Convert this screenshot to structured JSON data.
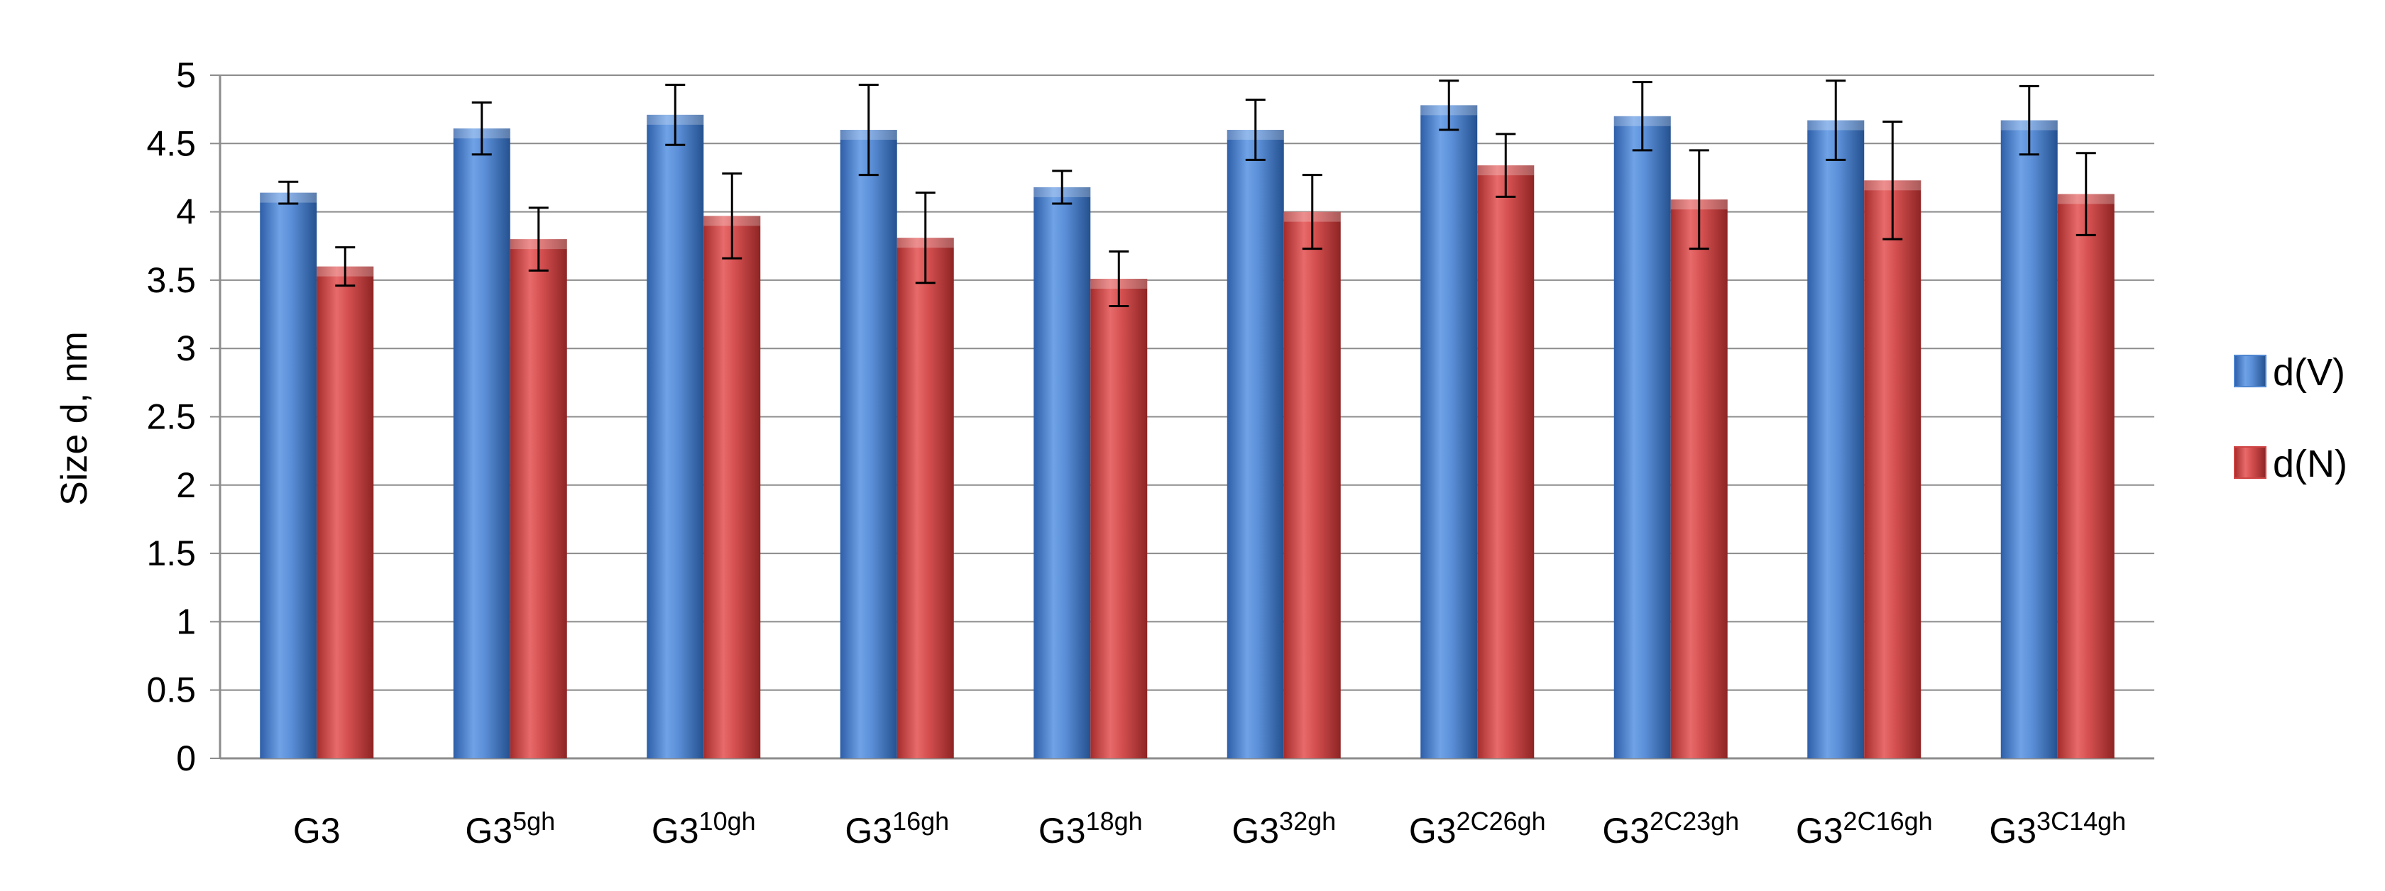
{
  "chart_data": {
    "type": "bar",
    "title": "",
    "xlabel": "",
    "ylabel": "Size d, nm",
    "ylim": [
      0,
      5
    ],
    "yticks": [
      0,
      0.5,
      1,
      1.5,
      2,
      2.5,
      3,
      3.5,
      4,
      4.5,
      5
    ],
    "ytick_labels": [
      "0",
      "0.5",
      "1",
      "1.5",
      "2",
      "2.5",
      "3",
      "3.5",
      "4",
      "4.5",
      "5"
    ],
    "grid": true,
    "legend_position": "right",
    "categories": [
      {
        "base": "G3",
        "sup": ""
      },
      {
        "base": "G3",
        "sup": "5gh"
      },
      {
        "base": "G3",
        "sup": "10gh"
      },
      {
        "base": "G3",
        "sup": "16gh"
      },
      {
        "base": "G3",
        "sup": "18gh"
      },
      {
        "base": "G3",
        "sup": "32gh"
      },
      {
        "base": "G3",
        "sup": "2C26gh"
      },
      {
        "base": "G3",
        "sup": "2C23gh"
      },
      {
        "base": "G3",
        "sup": "2C16gh"
      },
      {
        "base": "G3",
        "sup": "3C14gh"
      }
    ],
    "series": [
      {
        "name": "d(V)",
        "color": "#4f86d0",
        "values": [
          4.14,
          4.61,
          4.71,
          4.6,
          4.18,
          4.6,
          4.78,
          4.7,
          4.67,
          4.67
        ],
        "errors": [
          0.08,
          0.19,
          0.22,
          0.33,
          0.12,
          0.22,
          0.18,
          0.25,
          0.29,
          0.25
        ]
      },
      {
        "name": "d(N)",
        "color": "#cf4444",
        "values": [
          3.6,
          3.8,
          3.97,
          3.81,
          3.51,
          4.0,
          4.34,
          4.09,
          4.23,
          4.13
        ],
        "errors": [
          0.14,
          0.23,
          0.31,
          0.33,
          0.2,
          0.27,
          0.23,
          0.36,
          0.43,
          0.3
        ]
      }
    ]
  }
}
